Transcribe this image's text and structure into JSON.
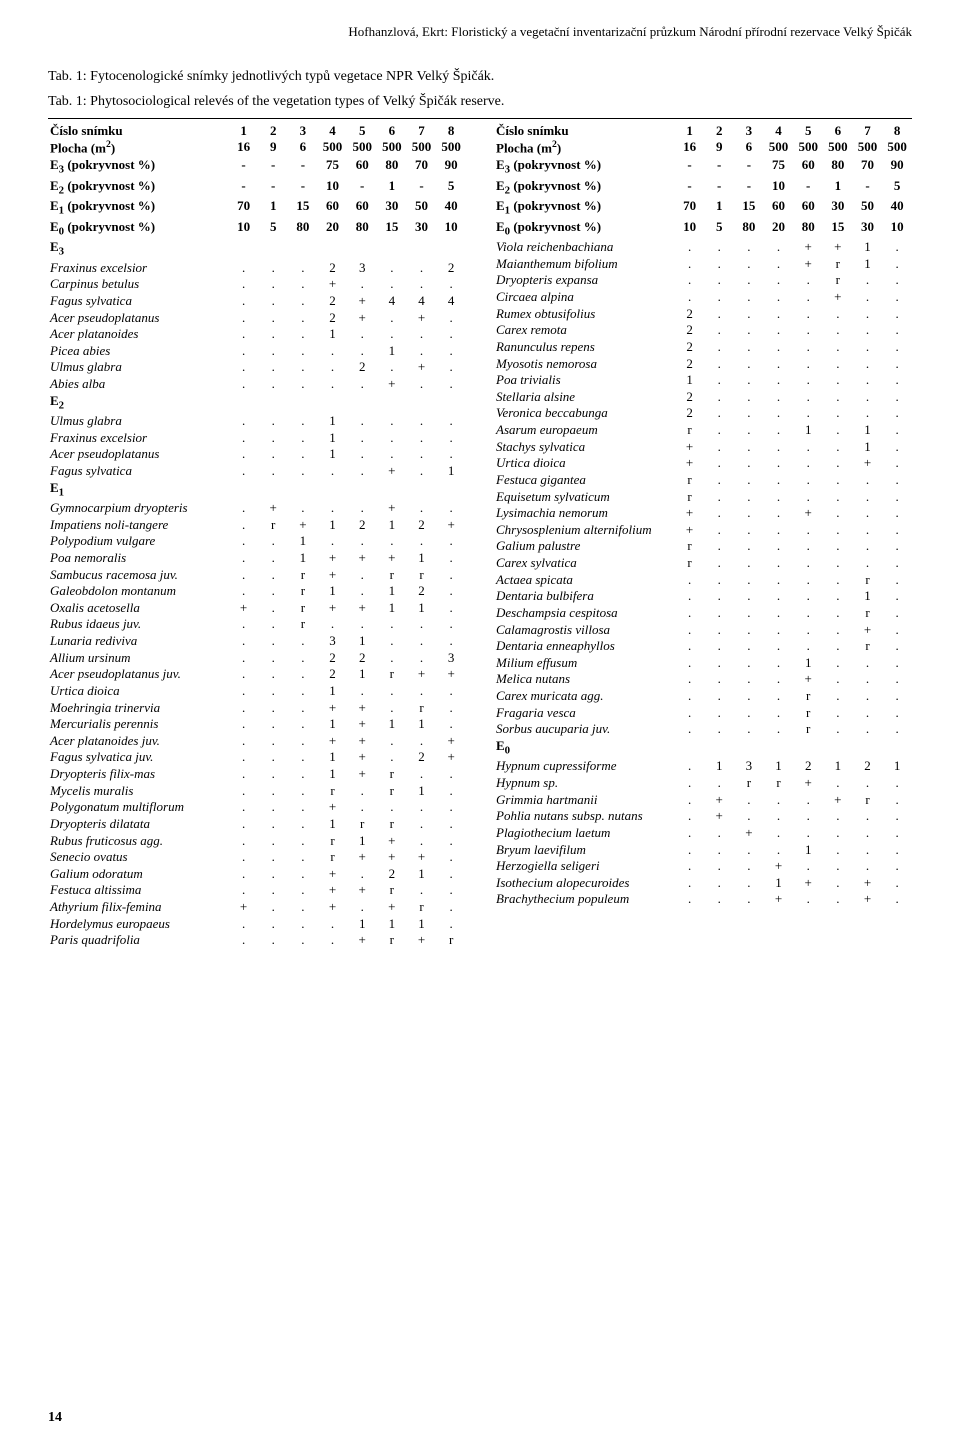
{
  "running_head": "Hofhanzlová, Ekrt: Floristický a vegetační inventarizační průzkum Národní přírodní rezervace Velký Špičák",
  "caption_line1": "Tab. 1: Fytocenologické snímky jednotlivých typů vegetace NPR Velký Špičák.",
  "caption_line2": "Tab. 1: Phytosociological relevés of the vegetation types of Velký Špičák reserve.",
  "page_number": "14",
  "colors": {
    "text": "#000000",
    "background": "#ffffff",
    "rule": "#000000"
  },
  "header_rows": [
    {
      "label": "Číslo snímku",
      "vals": [
        "1",
        "2",
        "3",
        "4",
        "5",
        "6",
        "7",
        "8"
      ],
      "bold": true
    },
    {
      "label": "Plocha (m²)",
      "vals": [
        "16",
        "9",
        "6",
        "500",
        "500",
        "500",
        "500",
        "500"
      ],
      "bold": true
    },
    {
      "label": "E₃ (pokryvnost %)",
      "vals": [
        "-",
        "-",
        "-",
        "75",
        "60",
        "80",
        "70",
        "90"
      ],
      "bold": true
    },
    {
      "label": "E₂ (pokryvnost %)",
      "vals": [
        "-",
        "-",
        "-",
        "10",
        "-",
        "1",
        "-",
        "5"
      ],
      "bold": true
    },
    {
      "label": "E₁ (pokryvnost %)",
      "vals": [
        "70",
        "1",
        "15",
        "60",
        "60",
        "30",
        "50",
        "40"
      ],
      "bold": true
    },
    {
      "label": "E₀ (pokryvnost %)",
      "vals": [
        "10",
        "5",
        "80",
        "20",
        "80",
        "15",
        "30",
        "10"
      ],
      "bold": true
    }
  ],
  "left_rows": [
    {
      "label": "E₃",
      "vals": [
        "",
        "",
        "",
        "",
        "",
        "",
        "",
        ""
      ],
      "section": true
    },
    {
      "label": "Fraxinus excelsior",
      "vals": [
        ".",
        ".",
        ".",
        "2",
        "3",
        ".",
        ".",
        "2"
      ],
      "italic": true
    },
    {
      "label": "Carpinus betulus",
      "vals": [
        ".",
        ".",
        ".",
        "+",
        ".",
        ".",
        ".",
        "."
      ],
      "italic": true
    },
    {
      "label": "Fagus sylvatica",
      "vals": [
        ".",
        ".",
        ".",
        "2",
        "+",
        "4",
        "4",
        "4"
      ],
      "italic": true
    },
    {
      "label": "Acer pseudoplatanus",
      "vals": [
        ".",
        ".",
        ".",
        "2",
        "+",
        ".",
        "+",
        "."
      ],
      "italic": true
    },
    {
      "label": "Acer platanoides",
      "vals": [
        ".",
        ".",
        ".",
        "1",
        ".",
        ".",
        ".",
        "."
      ],
      "italic": true
    },
    {
      "label": "Picea abies",
      "vals": [
        ".",
        ".",
        ".",
        ".",
        ".",
        "1",
        ".",
        "."
      ],
      "italic": true
    },
    {
      "label": "Ulmus glabra",
      "vals": [
        ".",
        ".",
        ".",
        ".",
        "2",
        ".",
        "+",
        "."
      ],
      "italic": true
    },
    {
      "label": "Abies alba",
      "vals": [
        ".",
        ".",
        ".",
        ".",
        ".",
        "+",
        ".",
        "."
      ],
      "italic": true
    },
    {
      "label": "E₂",
      "vals": [
        "",
        "",
        "",
        "",
        "",
        "",
        "",
        ""
      ],
      "section": true
    },
    {
      "label": "Ulmus glabra",
      "vals": [
        ".",
        ".",
        ".",
        "1",
        ".",
        ".",
        ".",
        "."
      ],
      "italic": true
    },
    {
      "label": "Fraxinus excelsior",
      "vals": [
        ".",
        ".",
        ".",
        "1",
        ".",
        ".",
        ".",
        "."
      ],
      "italic": true
    },
    {
      "label": "Acer pseudoplatanus",
      "vals": [
        ".",
        ".",
        ".",
        "1",
        ".",
        ".",
        ".",
        "."
      ],
      "italic": true
    },
    {
      "label": "Fagus sylvatica",
      "vals": [
        ".",
        ".",
        ".",
        ".",
        ".",
        "+",
        ".",
        "1"
      ],
      "italic": true
    },
    {
      "label": "E₁",
      "vals": [
        "",
        "",
        "",
        "",
        "",
        "",
        "",
        ""
      ],
      "section": true
    },
    {
      "label": "Gymnocarpium dryopteris",
      "vals": [
        ".",
        "+",
        ".",
        ".",
        ".",
        "+",
        ".",
        "."
      ],
      "italic": true
    },
    {
      "label": "Impatiens noli-tangere",
      "vals": [
        ".",
        "r",
        "+",
        "1",
        "2",
        "1",
        "2",
        "+"
      ],
      "italic": true
    },
    {
      "label": "Polypodium vulgare",
      "vals": [
        ".",
        ".",
        "1",
        ".",
        ".",
        ".",
        ".",
        "."
      ],
      "italic": true
    },
    {
      "label": "Poa nemoralis",
      "vals": [
        ".",
        ".",
        "1",
        "+",
        "+",
        "+",
        "1",
        "."
      ],
      "italic": true
    },
    {
      "label": "Sambucus racemosa juv.",
      "vals": [
        ".",
        ".",
        "r",
        "+",
        ".",
        "r",
        "r",
        "."
      ],
      "italic": true
    },
    {
      "label": "Galeobdolon montanum",
      "vals": [
        ".",
        ".",
        "r",
        "1",
        ".",
        "1",
        "2",
        "."
      ],
      "italic": true
    },
    {
      "label": "Oxalis acetosella",
      "vals": [
        "+",
        ".",
        "r",
        "+",
        "+",
        "1",
        "1",
        "."
      ],
      "italic": true
    },
    {
      "label": "Rubus idaeus juv.",
      "vals": [
        ".",
        ".",
        "r",
        ".",
        ".",
        ".",
        ".",
        "."
      ],
      "italic": true
    },
    {
      "label": "Lunaria rediviva",
      "vals": [
        ".",
        ".",
        ".",
        "3",
        "1",
        ".",
        ".",
        "."
      ],
      "italic": true
    },
    {
      "label": "Allium ursinum",
      "vals": [
        ".",
        ".",
        ".",
        "2",
        "2",
        ".",
        ".",
        "3"
      ],
      "italic": true
    },
    {
      "label": "Acer pseudoplatanus juv.",
      "vals": [
        ".",
        ".",
        ".",
        "2",
        "1",
        "r",
        "+",
        "+"
      ],
      "italic": true
    },
    {
      "label": "Urtica dioica",
      "vals": [
        ".",
        ".",
        ".",
        "1",
        ".",
        ".",
        ".",
        "."
      ],
      "italic": true
    },
    {
      "label": "Moehringia trinervia",
      "vals": [
        ".",
        ".",
        ".",
        "+",
        "+",
        ".",
        "r",
        "."
      ],
      "italic": true
    },
    {
      "label": "Mercurialis perennis",
      "vals": [
        ".",
        ".",
        ".",
        "1",
        "+",
        "1",
        "1",
        "."
      ],
      "italic": true
    },
    {
      "label": "Acer platanoides juv.",
      "vals": [
        ".",
        ".",
        ".",
        "+",
        "+",
        ".",
        ".",
        "+"
      ],
      "italic": true
    },
    {
      "label": "Fagus sylvatica juv.",
      "vals": [
        ".",
        ".",
        ".",
        "1",
        "+",
        ".",
        "2",
        "+"
      ],
      "italic": true
    },
    {
      "label": "Dryopteris filix-mas",
      "vals": [
        ".",
        ".",
        ".",
        "1",
        "+",
        "r",
        ".",
        "."
      ],
      "italic": true
    },
    {
      "label": "Mycelis muralis",
      "vals": [
        ".",
        ".",
        ".",
        "r",
        ".",
        "r",
        "1",
        "."
      ],
      "italic": true
    },
    {
      "label": "Polygonatum multiflorum",
      "vals": [
        ".",
        ".",
        ".",
        "+",
        ".",
        ".",
        ".",
        "."
      ],
      "italic": true
    },
    {
      "label": "Dryopteris dilatata",
      "vals": [
        ".",
        ".",
        ".",
        "1",
        "r",
        "r",
        ".",
        "."
      ],
      "italic": true
    },
    {
      "label": "Rubus fruticosus agg.",
      "vals": [
        ".",
        ".",
        ".",
        "r",
        "1",
        "+",
        ".",
        "."
      ],
      "italic": true
    },
    {
      "label": "Senecio ovatus",
      "vals": [
        ".",
        ".",
        ".",
        "r",
        "+",
        "+",
        "+",
        "."
      ],
      "italic": true
    },
    {
      "label": "Galium odoratum",
      "vals": [
        ".",
        ".",
        ".",
        "+",
        ".",
        "2",
        "1",
        "."
      ],
      "italic": true
    },
    {
      "label": "Festuca altissima",
      "vals": [
        ".",
        ".",
        ".",
        "+",
        "+",
        "r",
        ".",
        "."
      ],
      "italic": true
    },
    {
      "label": "Athyrium filix-femina",
      "vals": [
        "+",
        ".",
        ".",
        "+",
        ".",
        "+",
        "r",
        "."
      ],
      "italic": true
    },
    {
      "label": "Hordelymus europaeus",
      "vals": [
        ".",
        ".",
        ".",
        ".",
        "1",
        "1",
        "1",
        "."
      ],
      "italic": true
    },
    {
      "label": "Paris quadrifolia",
      "vals": [
        ".",
        ".",
        ".",
        ".",
        "+",
        "r",
        "+",
        "r"
      ],
      "italic": true
    }
  ],
  "right_rows": [
    {
      "label": "Viola reichenbachiana",
      "vals": [
        ".",
        ".",
        ".",
        ".",
        "+",
        "+",
        "1",
        "."
      ],
      "italic": true
    },
    {
      "label": "Maianthemum bifolium",
      "vals": [
        ".",
        ".",
        ".",
        ".",
        "+",
        "r",
        "1",
        "."
      ],
      "italic": true
    },
    {
      "label": "Dryopteris expansa",
      "vals": [
        ".",
        ".",
        ".",
        ".",
        ".",
        "r",
        ".",
        "."
      ],
      "italic": true
    },
    {
      "label": "Circaea alpina",
      "vals": [
        ".",
        ".",
        ".",
        ".",
        ".",
        "+",
        ".",
        "."
      ],
      "italic": true
    },
    {
      "label": "Rumex obtusifolius",
      "vals": [
        "2",
        ".",
        ".",
        ".",
        ".",
        ".",
        ".",
        "."
      ],
      "italic": true
    },
    {
      "label": "Carex remota",
      "vals": [
        "2",
        ".",
        ".",
        ".",
        ".",
        ".",
        ".",
        "."
      ],
      "italic": true
    },
    {
      "label": "Ranunculus repens",
      "vals": [
        "2",
        ".",
        ".",
        ".",
        ".",
        ".",
        ".",
        "."
      ],
      "italic": true
    },
    {
      "label": "Myosotis nemorosa",
      "vals": [
        "2",
        ".",
        ".",
        ".",
        ".",
        ".",
        ".",
        "."
      ],
      "italic": true
    },
    {
      "label": "Poa trivialis",
      "vals": [
        "1",
        ".",
        ".",
        ".",
        ".",
        ".",
        ".",
        "."
      ],
      "italic": true
    },
    {
      "label": "Stellaria alsine",
      "vals": [
        "2",
        ".",
        ".",
        ".",
        ".",
        ".",
        ".",
        "."
      ],
      "italic": true
    },
    {
      "label": "Veronica beccabunga",
      "vals": [
        "2",
        ".",
        ".",
        ".",
        ".",
        ".",
        ".",
        "."
      ],
      "italic": true
    },
    {
      "label": "Asarum europaeum",
      "vals": [
        "r",
        ".",
        ".",
        ".",
        "1",
        ".",
        "1",
        "."
      ],
      "italic": true
    },
    {
      "label": "Stachys sylvatica",
      "vals": [
        "+",
        ".",
        ".",
        ".",
        ".",
        ".",
        "1",
        "."
      ],
      "italic": true
    },
    {
      "label": "Urtica dioica",
      "vals": [
        "+",
        ".",
        ".",
        ".",
        ".",
        ".",
        "+",
        "."
      ],
      "italic": true
    },
    {
      "label": "Festuca gigantea",
      "vals": [
        "r",
        ".",
        ".",
        ".",
        ".",
        ".",
        ".",
        "."
      ],
      "italic": true
    },
    {
      "label": "Equisetum sylvaticum",
      "vals": [
        "r",
        ".",
        ".",
        ".",
        ".",
        ".",
        ".",
        "."
      ],
      "italic": true
    },
    {
      "label": "Lysimachia nemorum",
      "vals": [
        "+",
        ".",
        ".",
        ".",
        "+",
        ".",
        ".",
        "."
      ],
      "italic": true
    },
    {
      "label": "Chrysosplenium alternifolium",
      "vals": [
        "+",
        ".",
        ".",
        ".",
        ".",
        ".",
        ".",
        "."
      ],
      "italic": true
    },
    {
      "label": "Galium palustre",
      "vals": [
        "r",
        ".",
        ".",
        ".",
        ".",
        ".",
        ".",
        "."
      ],
      "italic": true
    },
    {
      "label": "Carex sylvatica",
      "vals": [
        "r",
        ".",
        ".",
        ".",
        ".",
        ".",
        ".",
        "."
      ],
      "italic": true
    },
    {
      "label": "Actaea spicata",
      "vals": [
        ".",
        ".",
        ".",
        ".",
        ".",
        ".",
        "r",
        "."
      ],
      "italic": true
    },
    {
      "label": "Dentaria bulbifera",
      "vals": [
        ".",
        ".",
        ".",
        ".",
        ".",
        ".",
        "1",
        "."
      ],
      "italic": true
    },
    {
      "label": "Deschampsia cespitosa",
      "vals": [
        ".",
        ".",
        ".",
        ".",
        ".",
        ".",
        "r",
        "."
      ],
      "italic": true
    },
    {
      "label": "Calamagrostis villosa",
      "vals": [
        ".",
        ".",
        ".",
        ".",
        ".",
        ".",
        "+",
        "."
      ],
      "italic": true
    },
    {
      "label": "Dentaria enneaphyllos",
      "vals": [
        ".",
        ".",
        ".",
        ".",
        ".",
        ".",
        "r",
        "."
      ],
      "italic": true
    },
    {
      "label": "Milium effusum",
      "vals": [
        ".",
        ".",
        ".",
        ".",
        "1",
        ".",
        ".",
        "."
      ],
      "italic": true
    },
    {
      "label": "Melica nutans",
      "vals": [
        ".",
        ".",
        ".",
        ".",
        "+",
        ".",
        ".",
        "."
      ],
      "italic": true
    },
    {
      "label": "Carex muricata agg.",
      "vals": [
        ".",
        ".",
        ".",
        ".",
        "r",
        ".",
        ".",
        "."
      ],
      "italic": true
    },
    {
      "label": "Fragaria vesca",
      "vals": [
        ".",
        ".",
        ".",
        ".",
        "r",
        ".",
        ".",
        "."
      ],
      "italic": true
    },
    {
      "label": "Sorbus aucuparia juv.",
      "vals": [
        ".",
        ".",
        ".",
        ".",
        "r",
        ".",
        ".",
        "."
      ],
      "italic": true
    },
    {
      "label": "E₀",
      "vals": [
        "",
        "",
        "",
        "",
        "",
        "",
        "",
        ""
      ],
      "section": true
    },
    {
      "label": "Hypnum cupressiforme",
      "vals": [
        ".",
        "1",
        "3",
        "1",
        "2",
        "1",
        "2",
        "1"
      ],
      "italic": true
    },
    {
      "label": "Hypnum sp.",
      "vals": [
        ".",
        ".",
        "r",
        "r",
        "+",
        ".",
        ".",
        "."
      ],
      "italic": true
    },
    {
      "label": "Grimmia hartmanii",
      "vals": [
        ".",
        "+",
        ".",
        ".",
        ".",
        "+",
        "r",
        "."
      ],
      "italic": true
    },
    {
      "label": "Pohlia nutans subsp. nutans",
      "vals": [
        ".",
        "+",
        ".",
        ".",
        ".",
        ".",
        ".",
        "."
      ],
      "italic": true
    },
    {
      "label": "Plagiothecium laetum",
      "vals": [
        ".",
        ".",
        "+",
        ".",
        ".",
        ".",
        ".",
        "."
      ],
      "italic": true
    },
    {
      "label": "Bryum laevifilum",
      "vals": [
        ".",
        ".",
        ".",
        ".",
        "1",
        ".",
        ".",
        "."
      ],
      "italic": true
    },
    {
      "label": "Herzogiella seligeri",
      "vals": [
        ".",
        ".",
        ".",
        "+",
        ".",
        ".",
        ".",
        "."
      ],
      "italic": true
    },
    {
      "label": "Isothecium alopecuroides",
      "vals": [
        ".",
        ".",
        ".",
        "1",
        "+",
        ".",
        "+",
        "."
      ],
      "italic": true
    },
    {
      "label": "Brachythecium populeum",
      "vals": [
        ".",
        ".",
        ".",
        "+",
        ".",
        ".",
        "+",
        "."
      ],
      "italic": true
    }
  ]
}
